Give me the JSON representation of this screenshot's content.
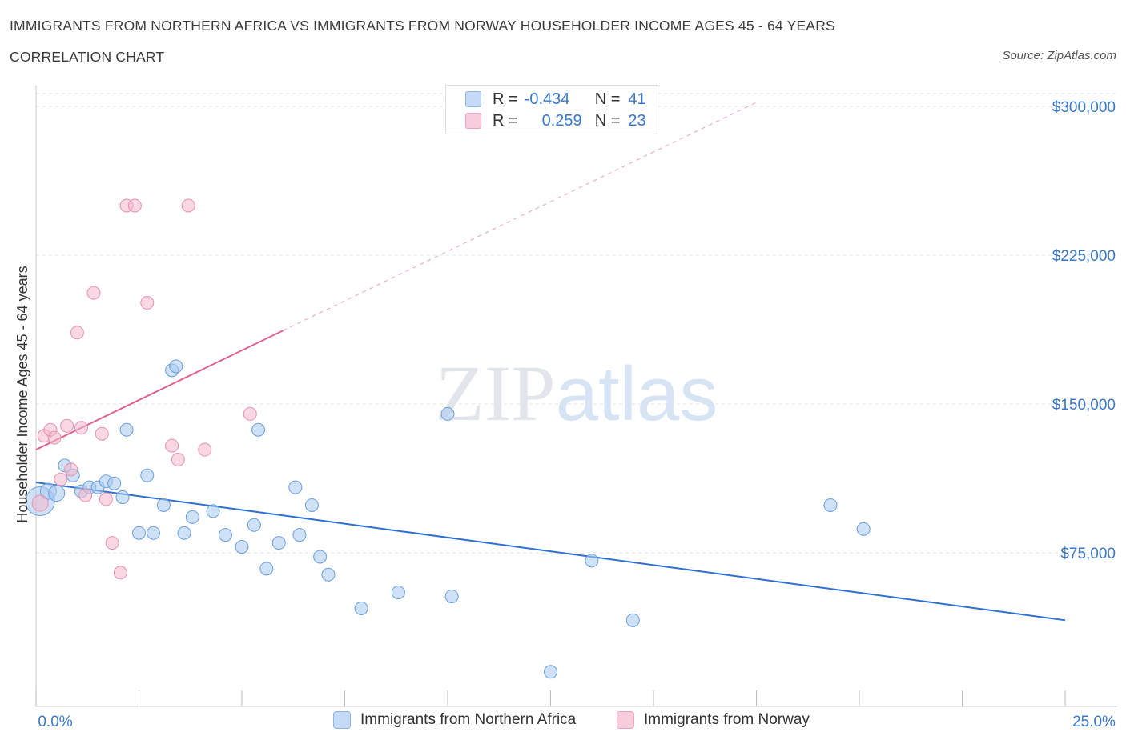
{
  "header": {
    "title": "IMMIGRANTS FROM NORTHERN AFRICA VS IMMIGRANTS FROM NORWAY HOUSEHOLDER INCOME AGES 45 - 64 YEARS",
    "subtitle": "CORRELATION CHART",
    "source": "Source: ZipAtlas.com"
  },
  "watermark": "ZIPatlas",
  "legend_top": {
    "rows": [
      {
        "r_label": "R =",
        "r_value": "-0.434",
        "n_label": "N =",
        "n_value": "41",
        "color": "#a8c8f0"
      },
      {
        "r_label": "R =",
        "r_value": "0.259",
        "n_label": "N =",
        "n_value": "23",
        "color": "#f5b8cc"
      }
    ]
  },
  "legend_bottom": {
    "items": [
      {
        "label": "Immigrants from Northern Africa",
        "color": "#a8c8f0"
      },
      {
        "label": "Immigrants from Norway",
        "color": "#f5b8cc"
      }
    ]
  },
  "chart_data": {
    "type": "scatter",
    "title": "IMMIGRANTS FROM NORTHERN AFRICA VS IMMIGRANTS FROM NORWAY HOUSEHOLDER INCOME AGES 45 - 64 YEARS",
    "xlabel": "",
    "ylabel": "Householder Income Ages 45 - 64 years",
    "xlim": [
      0,
      25
    ],
    "ylim": [
      0,
      300000
    ],
    "x_tick_labels": [
      "0.0%",
      "25.0%"
    ],
    "y_ticks": [
      75000,
      150000,
      225000,
      300000
    ],
    "y_tick_labels": [
      "$75,000",
      "$150,000",
      "$225,000",
      "$300,000"
    ],
    "grid": true,
    "series": [
      {
        "name": "Immigrants from Northern Africa",
        "color": "#a8c8f0",
        "stroke": "#6a9fe0",
        "points": [
          [
            0.1,
            101000,
            18
          ],
          [
            0.3,
            106000,
            10
          ],
          [
            0.5,
            105000,
            10
          ],
          [
            0.7,
            119000,
            8
          ],
          [
            0.9,
            114000,
            8
          ],
          [
            1.1,
            106000,
            8
          ],
          [
            1.3,
            108000,
            8
          ],
          [
            1.5,
            108000,
            8
          ],
          [
            1.7,
            111000,
            8
          ],
          [
            1.9,
            110000,
            8
          ],
          [
            2.1,
            103000,
            8
          ],
          [
            2.2,
            137000,
            8
          ],
          [
            2.5,
            85000,
            8
          ],
          [
            2.7,
            114000,
            8
          ],
          [
            2.85,
            85000,
            8
          ],
          [
            3.1,
            99000,
            8
          ],
          [
            3.3,
            167000,
            8
          ],
          [
            3.4,
            169000,
            8
          ],
          [
            3.6,
            85000,
            8
          ],
          [
            3.8,
            93000,
            8
          ],
          [
            4.3,
            96000,
            8
          ],
          [
            4.6,
            84000,
            8
          ],
          [
            5.0,
            78000,
            8
          ],
          [
            5.3,
            89000,
            8
          ],
          [
            5.4,
            137000,
            8
          ],
          [
            5.6,
            67000,
            8
          ],
          [
            5.9,
            80000,
            8
          ],
          [
            6.3,
            108000,
            8
          ],
          [
            6.4,
            84000,
            8
          ],
          [
            6.7,
            99000,
            8
          ],
          [
            6.9,
            73000,
            8
          ],
          [
            7.1,
            64000,
            8
          ],
          [
            7.9,
            47000,
            8
          ],
          [
            8.8,
            55000,
            8
          ],
          [
            10.0,
            145000,
            8
          ],
          [
            10.1,
            53000,
            8
          ],
          [
            12.5,
            15000,
            8
          ],
          [
            13.5,
            71000,
            8
          ],
          [
            14.5,
            41000,
            8
          ],
          [
            19.3,
            99000,
            8
          ],
          [
            20.1,
            87000,
            8
          ]
        ],
        "trend": {
          "x": [
            0,
            25
          ],
          "y": [
            110500,
            41000
          ]
        }
      },
      {
        "name": "Immigrants from Norway",
        "color": "#f5b8cc",
        "stroke": "#e890ad",
        "points": [
          [
            0.1,
            100000,
            10
          ],
          [
            0.2,
            134000,
            8
          ],
          [
            0.35,
            137000,
            8
          ],
          [
            0.45,
            133000,
            8
          ],
          [
            0.6,
            112000,
            8
          ],
          [
            0.75,
            139000,
            8
          ],
          [
            0.85,
            117000,
            8
          ],
          [
            1.0,
            186000,
            8
          ],
          [
            1.1,
            138000,
            8
          ],
          [
            1.2,
            104000,
            8
          ],
          [
            1.4,
            206000,
            8
          ],
          [
            1.6,
            135000,
            8
          ],
          [
            1.7,
            102000,
            8
          ],
          [
            1.85,
            80000,
            8
          ],
          [
            2.05,
            65000,
            8
          ],
          [
            2.2,
            250000,
            8
          ],
          [
            2.4,
            250000,
            8
          ],
          [
            2.7,
            201000,
            8
          ],
          [
            3.3,
            129000,
            8
          ],
          [
            3.45,
            122000,
            8
          ],
          [
            3.7,
            250000,
            8
          ],
          [
            4.1,
            127000,
            8
          ],
          [
            5.2,
            145000,
            8
          ]
        ],
        "trend": {
          "x": [
            0,
            6
          ],
          "y": [
            127000,
            187000
          ]
        },
        "trend_extension": {
          "x": [
            6,
            17.5
          ],
          "y": [
            187000,
            302000
          ]
        }
      }
    ]
  }
}
